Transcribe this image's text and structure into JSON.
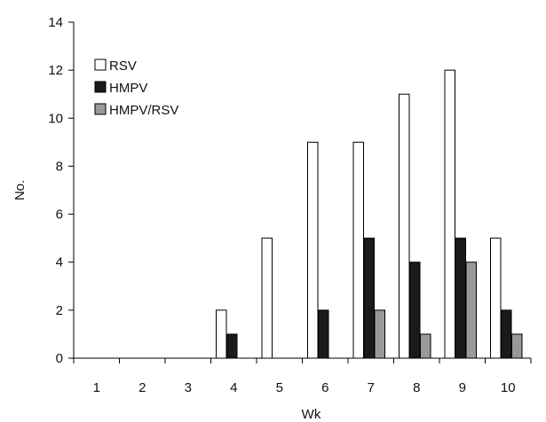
{
  "chart_data": {
    "type": "bar",
    "title": "",
    "xlabel": "Wk",
    "ylabel": "No.",
    "ylim": [
      0,
      14
    ],
    "yticks": [
      0,
      2,
      4,
      6,
      8,
      10,
      12,
      14
    ],
    "grid": false,
    "legend_position": "top-left",
    "categories": [
      "1",
      "2",
      "3",
      "4",
      "5",
      "6",
      "7",
      "8",
      "9",
      "10"
    ],
    "series": [
      {
        "name": "RSV",
        "color": "#ffffff",
        "values": [
          0,
          0,
          0,
          2,
          5,
          9,
          9,
          11,
          12,
          5
        ]
      },
      {
        "name": "HMPV",
        "color": "#1a1a1a",
        "values": [
          0,
          0,
          0,
          1,
          0,
          2,
          5,
          4,
          5,
          2
        ]
      },
      {
        "name": "HMPV/RSV",
        "color": "#999999",
        "values": [
          0,
          0,
          0,
          0,
          0,
          0,
          2,
          1,
          4,
          1
        ]
      }
    ]
  }
}
